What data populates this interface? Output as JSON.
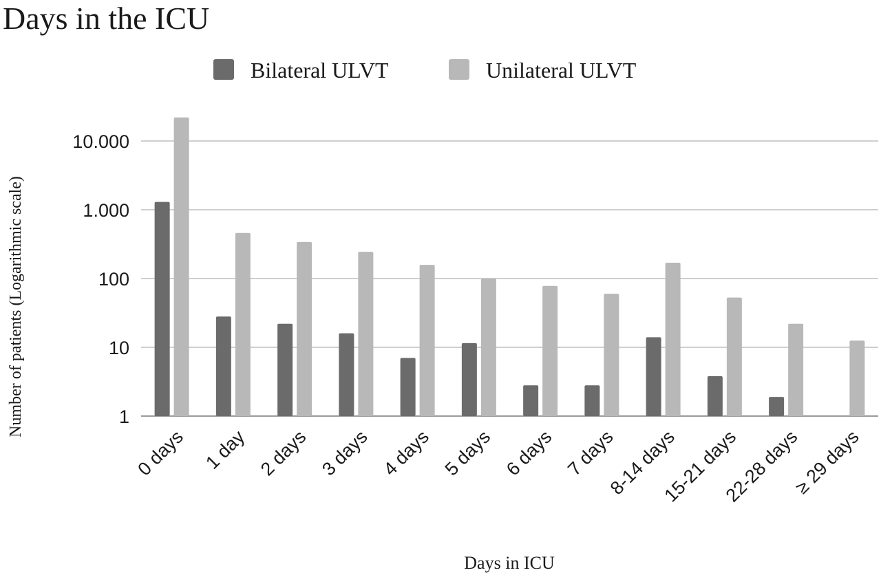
{
  "chart_data": {
    "type": "bar",
    "title": "Days in the ICU",
    "xlabel": "Days in ICU",
    "ylabel": "Number of patients (Logarithmic scale)",
    "yscale": "log",
    "ylim": [
      1,
      25000
    ],
    "yticks": [
      1,
      10,
      100,
      1000,
      10000
    ],
    "ytick_labels": [
      "1",
      "10",
      "100",
      "1.000",
      "10.000"
    ],
    "grid": true,
    "legend_position": "top",
    "categories": [
      "0 days",
      "1 day",
      "2 days",
      "3 days",
      "4 days",
      "5 days",
      "6 days",
      "7 days",
      "8-14 days",
      "15-21 days",
      "22-28 days",
      "≥ 29 days"
    ],
    "series": [
      {
        "name": "Bilateral ULVT",
        "color": "#6b6b6b",
        "values": [
          1300,
          28,
          22,
          16,
          7,
          11.5,
          2.8,
          2.8,
          14,
          3.8,
          1.9,
          null
        ]
      },
      {
        "name": "Unilateral ULVT",
        "color": "#b8b8b8",
        "values": [
          22000,
          460,
          340,
          245,
          158,
          100,
          78,
          60,
          170,
          53,
          22,
          12.5
        ]
      }
    ]
  }
}
